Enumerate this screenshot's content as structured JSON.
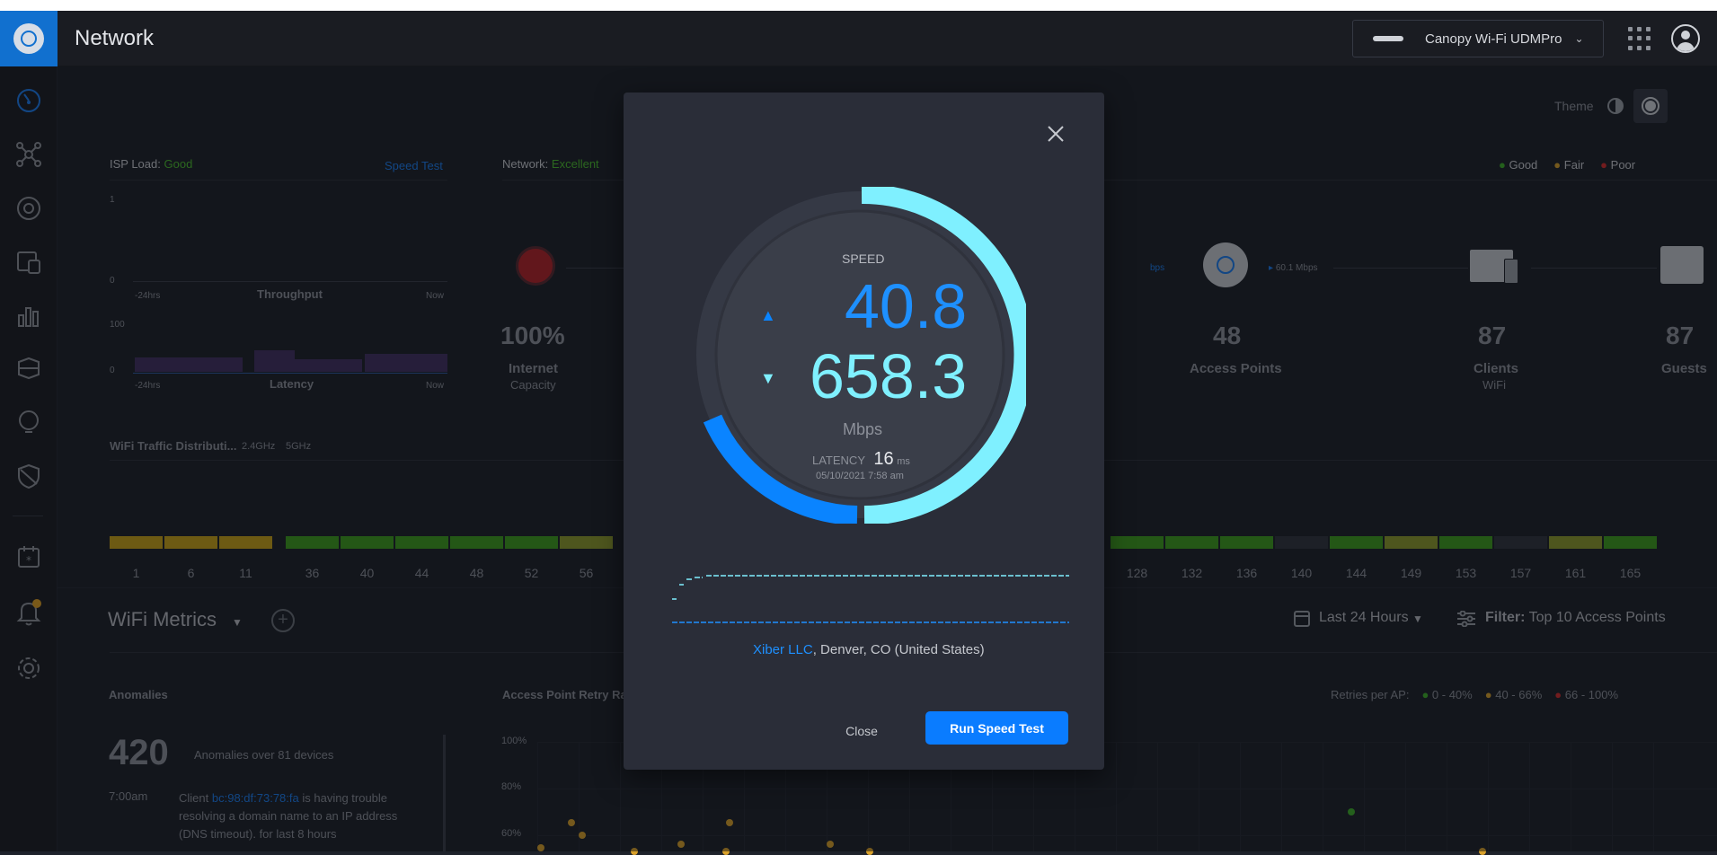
{
  "header": {
    "title": "Network",
    "device_name": "Canopy Wi-Fi UDMPro"
  },
  "theme": {
    "label": "Theme"
  },
  "legend": [
    {
      "label": "Good",
      "color": "#3fae2a"
    },
    {
      "label": "Fair",
      "color": "#d9a12b"
    },
    {
      "label": "Poor",
      "color": "#d32d2d"
    }
  ],
  "isp": {
    "label": "ISP Load:",
    "status": "Good",
    "speed_test_link": "Speed Test",
    "throughput": {
      "y_max": "1",
      "y_min": "0",
      "left": "-24hrs",
      "title": "Throughput",
      "right": "Now"
    },
    "latency": {
      "y_max": "100",
      "y_min": "0",
      "left": "-24hrs",
      "title": "Latency",
      "right": "Now"
    }
  },
  "network": {
    "label": "Network:",
    "status": "Excellent"
  },
  "topology": {
    "internet": {
      "value": "100%",
      "label": "Internet",
      "sub": "Capacity"
    },
    "uplink_left": "bps",
    "uplink_right": "60.1 Mbps",
    "access_points": {
      "value": "48",
      "label": "Access Points"
    },
    "clients": {
      "value": "87",
      "label": "Clients",
      "sub": "WiFi"
    },
    "guests": {
      "value": "87",
      "label": "Guests"
    }
  },
  "wifi_traffic": {
    "title": "WiFi Traffic Distributi...",
    "band1": "2.4GHz",
    "band2": "5GHz",
    "channels_24": [
      "1",
      "6",
      "11"
    ],
    "channels_5_left": [
      "36",
      "40",
      "44",
      "48",
      "52",
      "56"
    ],
    "channels_5_right": [
      "128",
      "132",
      "136",
      "140",
      "144",
      "149",
      "153",
      "157",
      "161",
      "165"
    ]
  },
  "wifi_metrics": {
    "title": "WiFi Metrics",
    "range": "Last 24 Hours",
    "filter_label": "Filter:",
    "filter_value": "Top 10 Access Points"
  },
  "anomalies": {
    "title": "Anomalies",
    "count": "420",
    "summary": "Anomalies over 81 devices",
    "time": "7:00am",
    "client_prefix": "Client",
    "client_mac": "bc:98:df:73:78:fa",
    "message": "is having trouble resolving a domain name to an IP address (DNS timeout). for last 8 hours"
  },
  "retry": {
    "title": "Access Point Retry Ra",
    "legend_label": "Retries per AP:",
    "legend": [
      {
        "label": "0 - 40%",
        "color": "#3fae2a"
      },
      {
        "label": "40 - 66%",
        "color": "#d9a12b"
      },
      {
        "label": "66 - 100%",
        "color": "#d32d2d"
      }
    ],
    "y_labels": [
      "100%",
      "80%",
      "60%"
    ]
  },
  "speedtest": {
    "speed_label": "SPEED",
    "upload": "40.8",
    "download": "658.3",
    "unit": "Mbps",
    "latency_label": "LATENCY",
    "latency_value": "16",
    "latency_unit": "ms",
    "timestamp": "05/10/2021 7:58 am",
    "provider": "Xiber LLC",
    "location": ", Denver, CO (United States)",
    "close_label": "Close",
    "run_label": "Run Speed Test"
  }
}
